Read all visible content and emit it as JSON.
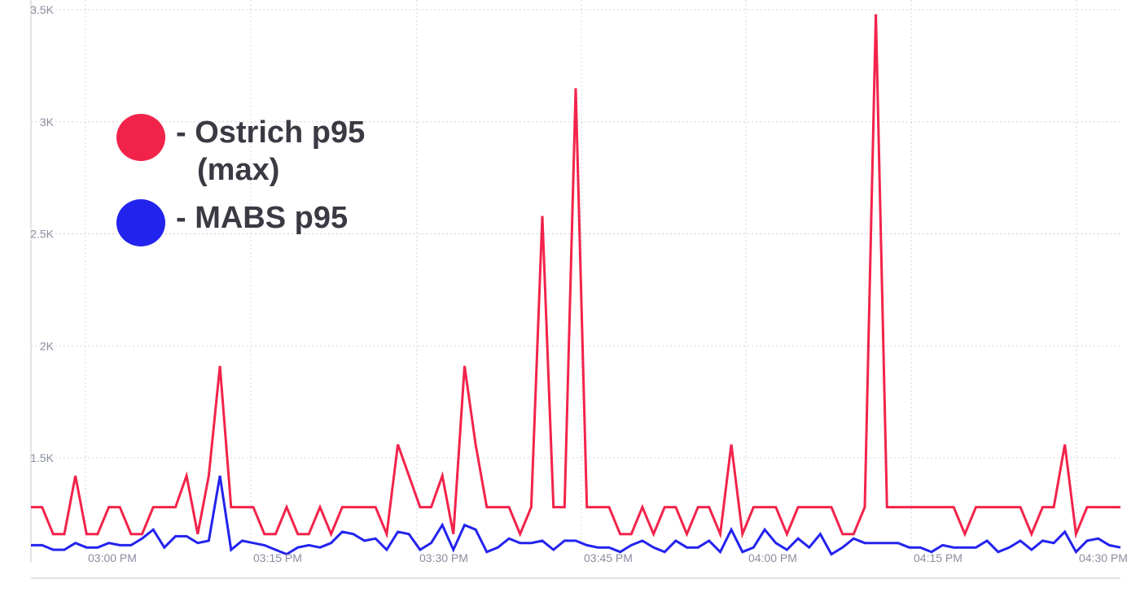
{
  "chart_data": {
    "type": "line",
    "title": "",
    "xlabel": "",
    "ylabel": "",
    "x_ticks": [
      "03:00 PM",
      "03:15 PM",
      "03:30 PM",
      "03:45 PM",
      "04:00 PM",
      "04:15 PM",
      "04:30 PM"
    ],
    "y_ticks": [
      "1.5K",
      "2K",
      "2.5K",
      "3K",
      "3.5K"
    ],
    "y_tick_values": [
      1500,
      2000,
      2500,
      3000,
      3500
    ],
    "ylim": [
      1000,
      3500
    ],
    "grid": true,
    "legend_position": "top-left",
    "series": [
      {
        "name": "- Ostrich p95 (max)",
        "color": "#f2234a",
        "values": [
          1280,
          1280,
          1160,
          1160,
          1420,
          1160,
          1160,
          1280,
          1280,
          1160,
          1160,
          1280,
          1280,
          1280,
          1420,
          1160,
          1420,
          1910,
          1280,
          1280,
          1280,
          1160,
          1160,
          1280,
          1160,
          1160,
          1280,
          1160,
          1280,
          1280,
          1280,
          1280,
          1160,
          1560,
          1420,
          1280,
          1280,
          1420,
          1160,
          1910,
          1560,
          1280,
          1280,
          1280,
          1160,
          1280,
          2580,
          1280,
          1280,
          3150,
          1280,
          1280,
          1280,
          1160,
          1160,
          1280,
          1160,
          1280,
          1280,
          1160,
          1280,
          1280,
          1160,
          1560,
          1160,
          1280,
          1280,
          1280,
          1160,
          1280,
          1280,
          1280,
          1280,
          1160,
          1160,
          1280,
          3480,
          1280,
          1280,
          1280,
          1280,
          1280,
          1280,
          1280,
          1160,
          1280,
          1280,
          1280,
          1280,
          1280,
          1160,
          1280,
          1280,
          1560,
          1160,
          1280,
          1280,
          1280,
          1280
        ]
      },
      {
        "name": "- MABS p95",
        "color": "#2323ee",
        "values": [
          1110,
          1110,
          1090,
          1090,
          1120,
          1100,
          1100,
          1120,
          1110,
          1110,
          1140,
          1180,
          1100,
          1150,
          1150,
          1120,
          1130,
          1420,
          1090,
          1130,
          1120,
          1110,
          1090,
          1070,
          1100,
          1110,
          1100,
          1120,
          1170,
          1160,
          1130,
          1140,
          1090,
          1170,
          1160,
          1090,
          1120,
          1200,
          1090,
          1200,
          1180,
          1080,
          1100,
          1140,
          1120,
          1120,
          1130,
          1090,
          1130,
          1130,
          1110,
          1100,
          1100,
          1080,
          1110,
          1130,
          1100,
          1080,
          1130,
          1100,
          1100,
          1130,
          1080,
          1180,
          1080,
          1100,
          1180,
          1120,
          1090,
          1140,
          1100,
          1160,
          1070,
          1100,
          1140,
          1120,
          1120,
          1120,
          1120,
          1100,
          1100,
          1080,
          1110,
          1100,
          1100,
          1100,
          1130,
          1080,
          1100,
          1130,
          1090,
          1130,
          1120,
          1170,
          1080,
          1130,
          1140,
          1110,
          1100
        ]
      }
    ]
  },
  "legend": {
    "ostrich_label_1": "- Ostrich p95",
    "ostrich_label_2": "(max)",
    "mabs_label": "- MABS p95"
  }
}
